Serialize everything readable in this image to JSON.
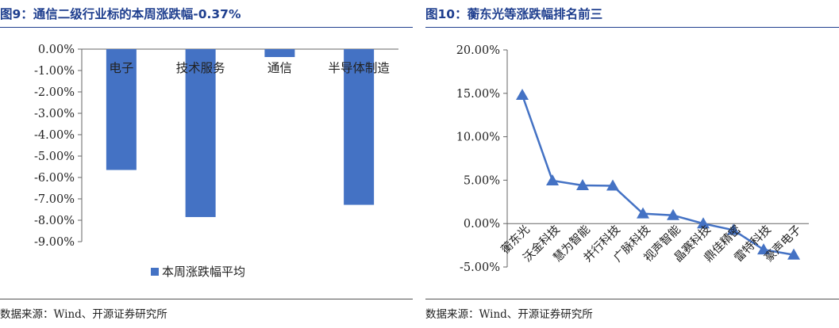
{
  "left_panel": {
    "title": "图9：通信二级行业标的本周涨跌幅-0.37%",
    "source": "数据来源：Wind、开源证券研究所"
  },
  "right_panel": {
    "title": "图10：蘅东光等涨跌幅排名前三",
    "source": "数据来源：Wind、开源证券研究所"
  },
  "colors": {
    "bar": "#4472c4",
    "line": "#4472c4",
    "title": "#1f3f8f"
  },
  "chart_data": [
    {
      "type": "bar",
      "categories": [
        "电子",
        "技术服务",
        "通信",
        "半导体制造"
      ],
      "series": [
        {
          "name": "本周涨跌幅平均",
          "values": [
            -5.65,
            -7.85,
            -0.37,
            -7.28
          ]
        }
      ],
      "y_ticks": [
        "0.00%",
        "-1.00%",
        "-2.00%",
        "-3.00%",
        "-4.00%",
        "-5.00%",
        "-6.00%",
        "-7.00%",
        "-8.00%",
        "-9.00%"
      ],
      "ylim": [
        -9,
        0
      ],
      "legend_position": "bottom-center",
      "grid": false
    },
    {
      "type": "line",
      "categories": [
        "蘅东光",
        "沃金科技",
        "慧为智能",
        "并行科技",
        "广脉科技",
        "视声智能",
        "晶赛科技",
        "鼎佳精密",
        "雷特科技",
        "豪声电子"
      ],
      "series": [
        {
          "values": [
            14.8,
            4.95,
            4.4,
            4.35,
            1.15,
            0.95,
            0.0,
            -0.75,
            -3.0,
            -3.6
          ]
        }
      ],
      "y_ticks": [
        "20.00%",
        "15.00%",
        "10.00%",
        "5.00%",
        "0.00%",
        "-5.00%"
      ],
      "ylim": [
        -5,
        20
      ],
      "marker": "triangle",
      "grid": false
    }
  ]
}
